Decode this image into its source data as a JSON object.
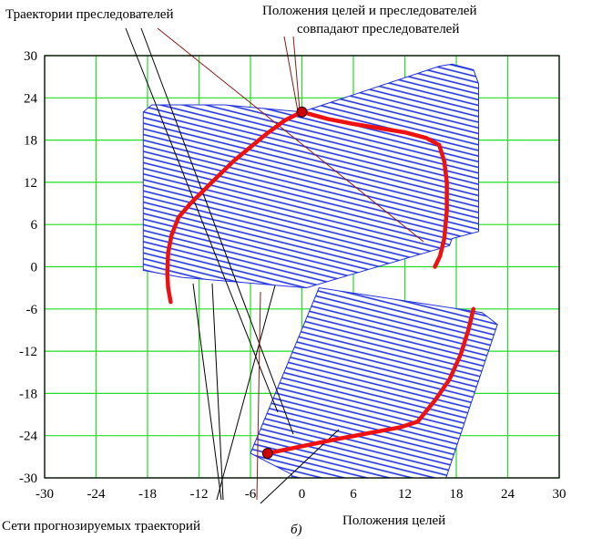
{
  "annotations": {
    "pursuer_trajectories": "Траектории преследователей",
    "coincide_line1": "Положения целей и преследователей",
    "coincide_line2": "совпадают преследователей",
    "forecast_nets": "Сети прогнозируемых траекторий",
    "target_positions": "Положения целей",
    "panel_label": "б)"
  },
  "colors": {
    "grid": "#22dd22",
    "mesh": "#2233dd",
    "trajectory": "#ee1111",
    "marker": "#cc0000",
    "leader": "#000000",
    "leader_dark_red": "#8b1a1a"
  },
  "chart_data": {
    "type": "scatter",
    "xlim": [
      -30,
      30
    ],
    "ylim": [
      -30,
      30
    ],
    "xticks": [
      -30,
      -24,
      -18,
      -12,
      -6,
      0,
      6,
      12,
      18,
      24,
      30
    ],
    "yticks": [
      30,
      24,
      18,
      12,
      6,
      0,
      -6,
      -12,
      -18,
      -24,
      -30
    ],
    "grid": true,
    "series": [
      {
        "kind": "mesh",
        "polygon": [
          [
            -18.5,
            22
          ],
          [
            -17.5,
            23
          ],
          [
            -9,
            23
          ],
          [
            0,
            22
          ],
          [
            16,
            28.5
          ],
          [
            17.5,
            28.8
          ],
          [
            20,
            28
          ],
          [
            20.6,
            26
          ],
          [
            20.6,
            5
          ],
          [
            17.5,
            4
          ],
          [
            17.2,
            3
          ],
          [
            0.5,
            -3
          ],
          [
            -14,
            -1.5
          ],
          [
            -18.5,
            -0.5
          ]
        ]
      },
      {
        "kind": "mesh",
        "polygon": [
          [
            2,
            -3
          ],
          [
            21,
            -6.5
          ],
          [
            22.8,
            -8.2
          ],
          [
            16.8,
            -30
          ],
          [
            -1.2,
            -30
          ],
          [
            -1.2,
            -29.5
          ],
          [
            -6,
            -26.5
          ]
        ]
      },
      {
        "kind": "trajectory",
        "points": [
          [
            0,
            22
          ],
          [
            -2,
            20.8
          ],
          [
            -4,
            19
          ],
          [
            -6,
            17
          ],
          [
            -8,
            15
          ],
          [
            -10.5,
            12
          ],
          [
            -13,
            9
          ],
          [
            -14.4,
            7
          ],
          [
            -15.2,
            4.5
          ],
          [
            -15.6,
            2
          ],
          [
            -15.7,
            -1
          ],
          [
            -15.6,
            -3
          ],
          [
            -15.3,
            -5
          ]
        ]
      },
      {
        "kind": "trajectory",
        "points": [
          [
            0,
            22
          ],
          [
            3,
            21
          ],
          [
            6,
            20.3
          ],
          [
            9,
            19.7
          ],
          [
            12,
            19.1
          ],
          [
            14.5,
            18.3
          ],
          [
            16,
            17.3
          ],
          [
            16.6,
            15
          ],
          [
            16.9,
            12
          ],
          [
            16.9,
            8
          ],
          [
            16.6,
            4
          ],
          [
            16.1,
            1.5
          ],
          [
            15.5,
            0
          ]
        ]
      },
      {
        "kind": "trajectory",
        "points": [
          [
            -4,
            -26.5
          ],
          [
            0,
            -25.5
          ],
          [
            4,
            -24.5
          ],
          [
            8,
            -23.6
          ],
          [
            11.5,
            -22.8
          ],
          [
            13.5,
            -22
          ],
          [
            15.5,
            -19
          ],
          [
            17.2,
            -16
          ],
          [
            18.5,
            -12.5
          ],
          [
            19.4,
            -9
          ],
          [
            20,
            -6
          ]
        ]
      },
      {
        "kind": "points",
        "points": [
          [
            0,
            22
          ],
          [
            -4,
            -26.5
          ]
        ]
      }
    ]
  }
}
